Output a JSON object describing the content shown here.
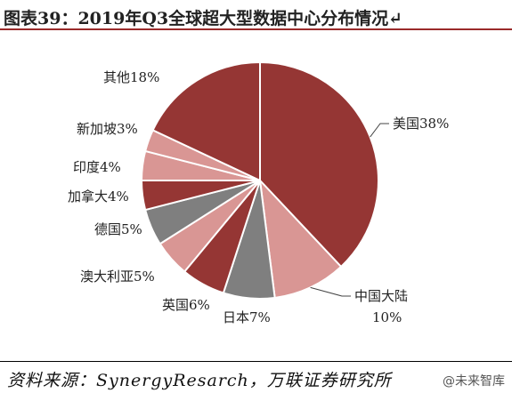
{
  "header": {
    "title": "图表39：2019年Q3全球超大型数据中心分布情况↵"
  },
  "footer": {
    "source": "资料来源：SynergyResarch，万联证券研究所",
    "watermark": "@未来智库"
  },
  "chart_data": {
    "type": "pie",
    "title": "",
    "slices": [
      {
        "label": "美国38%",
        "value": 38,
        "color": "#953634"
      },
      {
        "label": "中国大陆10%",
        "value": 10,
        "color": "#d99694"
      },
      {
        "label": "日本7%",
        "value": 7,
        "color": "#7f7f7f"
      },
      {
        "label": "英国6%",
        "value": 6,
        "color": "#953634"
      },
      {
        "label": "澳大利亚5%",
        "value": 5,
        "color": "#d99694"
      },
      {
        "label": "德国5%",
        "value": 5,
        "color": "#7f7f7f"
      },
      {
        "label": "加拿大4%",
        "value": 4,
        "color": "#953634"
      },
      {
        "label": "印度4%",
        "value": 4,
        "color": "#d99694"
      },
      {
        "label": "新加坡3%",
        "value": 3,
        "color": "#d99694"
      },
      {
        "label": "其他18%",
        "value": 18,
        "color": "#953634"
      }
    ]
  }
}
